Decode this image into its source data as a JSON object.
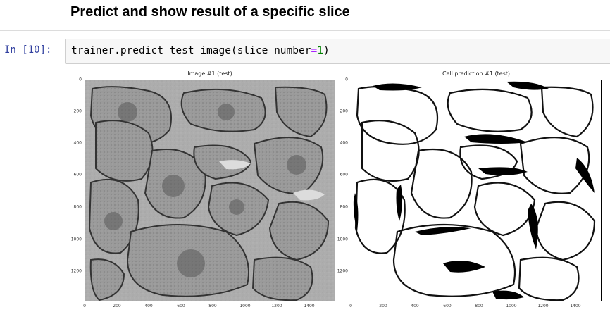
{
  "markdown": {
    "heading": "Predict and show result of a specific slice"
  },
  "cell": {
    "prompt": "In [10]:",
    "code_parts": {
      "fn": "trainer.predict_test_image(slice_number",
      "op": "=",
      "num": "1",
      "end": ")"
    }
  },
  "figure": {
    "left_title": "Image #1 (test)",
    "right_title": "Cell prediction #1 (test)",
    "left_y_ticks": [
      "0",
      "200",
      "400",
      "600",
      "800",
      "1000",
      "1200"
    ],
    "left_x_ticks": [
      "0",
      "200",
      "400",
      "600",
      "800",
      "1000",
      "1200",
      "1400"
    ],
    "right_y_ticks": [
      "0",
      "200",
      "400",
      "600",
      "800",
      "1000",
      "1200"
    ],
    "right_x_ticks": [
      "0",
      "200",
      "400",
      "600",
      "800",
      "1000",
      "1200",
      "1400"
    ]
  }
}
